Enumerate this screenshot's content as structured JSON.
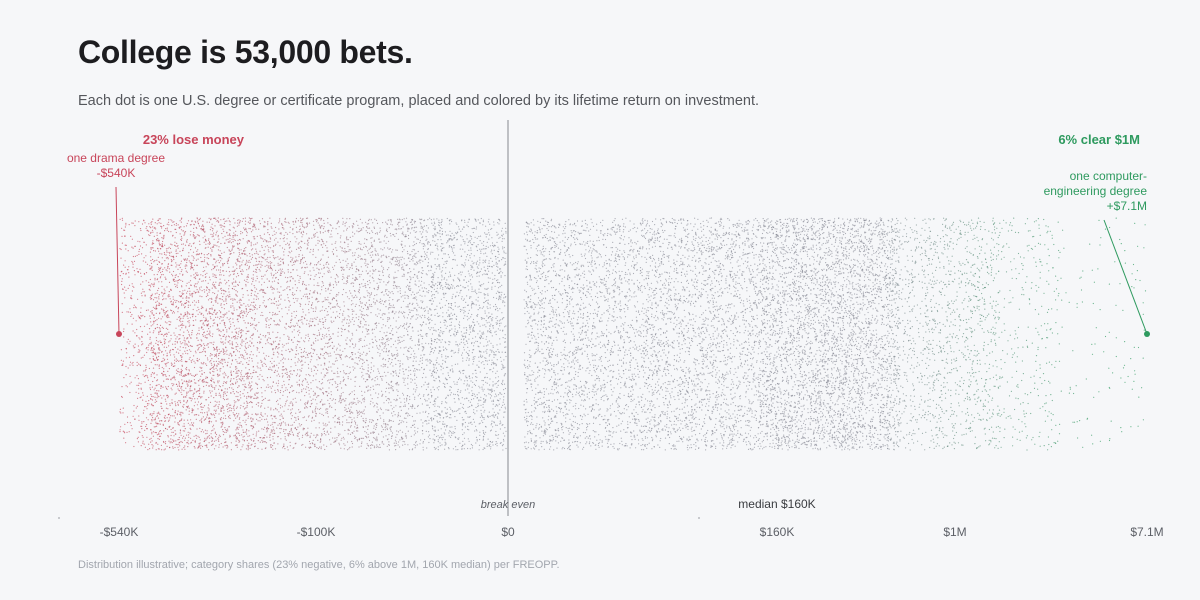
{
  "header": {
    "title": "College is 53,000 bets.",
    "subtitle": "Each dot is one U.S. degree or certificate program, placed and colored by its lifetime return on investment."
  },
  "footnote": "Distribution illustrative; category shares (23% negative, 6% above 1M,  160K median) per FREOPP.",
  "colors": {
    "negative": "#c8455a",
    "neutral": "#8d8f9a",
    "positive": "#2e9a5f",
    "baseline": "#9a9ca2",
    "text_dark": "#3a3c40",
    "axis_text": "#5c5f66"
  },
  "chart_data": {
    "type": "scatter",
    "encoding": "strip plot, jittered vertically",
    "program_count": 53000,
    "x_scale": "symmetric log",
    "x_ticks": [
      {
        "label": "-$540K",
        "value": -540000
      },
      {
        "label": "-$100K",
        "value": -100000
      },
      {
        "label": "$0",
        "value": 0
      },
      {
        "label": "$160K",
        "value": 160000
      },
      {
        "label": "$1M",
        "value": 1000000
      },
      {
        "label": "$7.1M",
        "value": 7100000
      }
    ],
    "xlim": [
      -540000,
      7100000
    ],
    "shares": {
      "negative_pct": 23,
      "above_1M_pct": 6,
      "median": 160000
    },
    "annotations": {
      "lose_money": "23% lose money",
      "clear_million": "6% clear $1M",
      "break_even": "break even",
      "median_label": "median  $160K",
      "low_outlier": {
        "lines": [
          "one drama degree",
          "-$540K"
        ],
        "value": -540000
      },
      "high_outlier": {
        "lines": [
          "one computer-",
          "engineering degree",
          "+$7.1M"
        ],
        "value": 7100000
      }
    }
  }
}
